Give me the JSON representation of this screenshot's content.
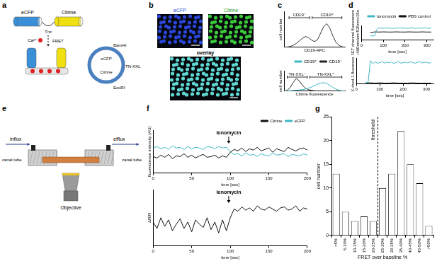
{
  "diagram_a": {
    "label": "a",
    "protein": {
      "donor": "eCFP",
      "linker": "Tnc",
      "acceptor": "Citrine"
    },
    "ion": "Ca²⁺",
    "transfer": "FRET",
    "plasmid": {
      "sites": [
        "BamHI",
        "EcoRI"
      ],
      "segments": [
        "eCFP",
        "TN-XXL",
        "Citrine"
      ]
    }
  },
  "images_b": {
    "label": "b",
    "tiles": [
      "eCFP",
      "Citrine",
      "overlay"
    ]
  },
  "diagram_e": {
    "label": "e",
    "flow": [
      "influx",
      "efflux"
    ],
    "tubes": [
      "canal tube",
      "canal tube"
    ],
    "objective": "Objective"
  },
  "chart_data": [
    {
      "panel": "c",
      "type": "line",
      "x_label": "CD19-APC",
      "y_label": "cell number",
      "x": [
        0,
        5,
        10,
        15,
        20,
        25,
        30,
        35,
        40,
        45,
        50,
        55,
        60,
        65,
        70,
        75,
        80,
        85,
        90,
        95,
        100
      ],
      "xlim": [
        0,
        100
      ],
      "ylim": [
        0,
        140
      ],
      "tick_labels": false,
      "grid": false,
      "series": [
        {
          "color": "#333333",
          "values": [
            0,
            1,
            3,
            8,
            15,
            25,
            35,
            42,
            38,
            28,
            22,
            30,
            55,
            80,
            92,
            75,
            45,
            20,
            8,
            2,
            0
          ]
        }
      ],
      "gates": [
        {
          "label": "CD19⁻",
          "from": 8,
          "to": 42
        },
        {
          "label": "CD19⁺",
          "from": 46,
          "to": 95
        }
      ]
    },
    {
      "type": "line",
      "x_label": "Citrine fluorescence",
      "y_label": "cell number",
      "x": [
        0,
        5,
        10,
        15,
        20,
        25,
        30,
        35,
        40,
        45,
        50,
        55,
        60,
        65,
        70,
        75,
        80,
        85,
        90,
        95,
        100
      ],
      "xlim": [
        0,
        100
      ],
      "ylim": [
        0,
        140
      ],
      "tick_labels": false,
      "grid": false,
      "legend": "upper right",
      "series": [
        {
          "name": "CD19⁺",
          "color": "#3fb8c4",
          "values": [
            0,
            1,
            2,
            4,
            6,
            8,
            10,
            14,
            20,
            28,
            38,
            48,
            55,
            58,
            52,
            40,
            26,
            14,
            6,
            2,
            0
          ]
        },
        {
          "name": "CD19⁻",
          "color": "#222222",
          "values": [
            0,
            5,
            25,
            60,
            88,
            70,
            40,
            20,
            10,
            5,
            2,
            1,
            0,
            0,
            0,
            0,
            0,
            0,
            0,
            0,
            0
          ]
        }
      ],
      "gates": [
        {
          "label": "TN-XXL⁻",
          "from": 5,
          "to": 38
        },
        {
          "label": "TN-XXL⁺",
          "from": 42,
          "to": 95
        }
      ]
    },
    {
      "panel": "d",
      "type": "line",
      "x_label": "time [sec]",
      "y_label": [
        "FRET channel fluorescence",
        "ex:490nm/em:535nm±15nm"
      ],
      "xlim": [
        0,
        330
      ],
      "xticks": [
        0,
        100,
        200,
        300
      ],
      "ylim": [
        0,
        100
      ],
      "tick_labels": "x",
      "grid": false,
      "legend": "upper right",
      "series": [
        {
          "name": "Ionomycin",
          "color": "#3fb8c4",
          "x": [
            40,
            50,
            60,
            70,
            80,
            90,
            100,
            110,
            120,
            130,
            140,
            150,
            160,
            170,
            180,
            190,
            200,
            210,
            220,
            230,
            240,
            250,
            260,
            270,
            280,
            290,
            300,
            310,
            320
          ],
          "values": [
            30,
            28,
            29,
            72,
            85,
            82,
            80,
            84,
            81,
            83,
            79,
            82,
            80,
            84,
            82,
            81,
            83,
            80,
            82,
            84,
            81,
            80,
            83,
            82,
            81,
            84,
            82,
            80,
            83
          ]
        },
        {
          "name": "PBS control",
          "color": "#111111",
          "x": [
            40,
            60,
            80,
            100,
            120,
            140,
            160,
            180,
            200,
            220,
            240,
            260,
            280,
            300,
            320
          ],
          "values": [
            50,
            56,
            55,
            56,
            55,
            55,
            56,
            55,
            55,
            56,
            55,
            55,
            56,
            55,
            55
          ]
        }
      ]
    },
    {
      "type": "line",
      "x_label": "time [sec]",
      "y_label": "X-rhod-1 fluorescence",
      "xlim": [
        0,
        330
      ],
      "xticks": [
        0,
        100,
        200,
        300
      ],
      "ylim": [
        0,
        100
      ],
      "tick_labels": "x",
      "grid": false,
      "series": [
        {
          "color": "#3fb8c4",
          "x": [
            40,
            50,
            60,
            70,
            80,
            90,
            100,
            110,
            120,
            130,
            140,
            150,
            160,
            170,
            180,
            190,
            200,
            210,
            220,
            230,
            240,
            250,
            260,
            270,
            280,
            290,
            300,
            310,
            320
          ],
          "values": [
            6,
            5,
            90,
            78,
            85,
            80,
            82,
            86,
            80,
            84,
            81,
            85,
            79,
            83,
            86,
            80,
            82,
            84,
            81,
            85,
            83,
            80,
            82,
            86,
            81,
            83,
            84,
            80,
            82
          ]
        },
        {
          "color": "#111111",
          "x": [
            40,
            60,
            80,
            100,
            120,
            140,
            160,
            180,
            200,
            220,
            240,
            260,
            280,
            300,
            320
          ],
          "values": [
            4,
            4,
            3,
            4,
            3,
            3,
            4,
            3,
            3,
            3,
            4,
            3,
            3,
            3,
            3
          ]
        }
      ]
    },
    {
      "panel": "f",
      "type": "line",
      "x_label": "time [sec]",
      "y_label": "fluorescence intensity (AU)",
      "x": [
        0,
        5,
        10,
        15,
        20,
        25,
        30,
        35,
        40,
        45,
        50,
        55,
        60,
        65,
        70,
        75,
        80,
        85,
        90,
        95,
        100,
        105,
        110,
        115,
        120,
        125,
        130,
        135,
        140,
        145,
        150,
        155,
        160,
        165,
        170,
        175,
        180,
        185,
        190,
        195,
        200
      ],
      "xlim": [
        0,
        200
      ],
      "xticks": [
        0,
        50,
        100,
        150,
        200
      ],
      "ylim": [
        0,
        6000
      ],
      "tick_labels": "x",
      "grid": false,
      "legend": "upper right",
      "series": [
        {
          "name": "Citrine",
          "color": "#111111",
          "values": [
            2300,
            2100,
            2500,
            2200,
            2600,
            2000,
            2400,
            2300,
            2700,
            2200,
            2500,
            2100,
            2400,
            2600,
            2200,
            2300,
            2500,
            2100,
            2400,
            2200,
            2900,
            3300,
            3100,
            3500,
            3000,
            3400,
            3200,
            3600,
            3100,
            3300,
            3500,
            2900,
            3400,
            3200,
            3000,
            3600,
            3300,
            3100,
            3400,
            3500,
            3200
          ]
        },
        {
          "name": "eCFP",
          "color": "#3fb8c4",
          "values": [
            3500,
            3700,
            3400,
            3600,
            3300,
            3800,
            3500,
            3600,
            3300,
            3700,
            3400,
            3600,
            3500,
            3300,
            3700,
            3600,
            3400,
            3700,
            3500,
            3600,
            3000,
            2600,
            2700,
            2400,
            2800,
            2500,
            2600,
            2300,
            2700,
            2500,
            2400,
            2800,
            2500,
            2600,
            2700,
            2300,
            2600,
            2500,
            2400,
            2700,
            2500
          ]
        }
      ],
      "arrows": [
        {
          "text": "Ionomycin",
          "x": 98
        }
      ]
    },
    {
      "type": "line",
      "x_label": "time [sec]",
      "y_label": "ΔR/R",
      "x": [
        0,
        5,
        10,
        15,
        20,
        25,
        30,
        35,
        40,
        45,
        50,
        55,
        60,
        65,
        70,
        75,
        80,
        85,
        90,
        95,
        100,
        105,
        110,
        115,
        120,
        125,
        130,
        135,
        140,
        145,
        150,
        155,
        160,
        165,
        170,
        175,
        180,
        185,
        190,
        195,
        200
      ],
      "xlim": [
        0,
        200
      ],
      "xticks": [
        0,
        50,
        100,
        150,
        200
      ],
      "ylim": [
        -1,
        1.6
      ],
      "tick_labels": "x",
      "grid": false,
      "series": [
        {
          "color": "#111111",
          "values": [
            0.1,
            -0.2,
            0.3,
            -0.1,
            0.2,
            -0.3,
            0,
            0.25,
            -0.2,
            0.1,
            -0.35,
            0.2,
            0,
            -0.15,
            0.3,
            -0.25,
            0.1,
            -0.4,
            0.2,
            -0.3,
            0.3,
            0.7,
            0.6,
            0.8,
            0.65,
            0.75,
            0.6,
            0.85,
            0.7,
            0.65,
            0.8,
            0.7,
            0.6,
            0.75,
            0.8,
            0.65,
            0.7,
            0.85,
            0.6,
            0.75,
            0.7
          ]
        }
      ],
      "arrows": [
        {
          "text": "Ionomycin",
          "x": 98
        }
      ]
    },
    {
      "panel": "g",
      "type": "bar",
      "x_label": "FRET over baseline %",
      "y_label": "cell number",
      "categories": [
        "<5%",
        "5-10%",
        "10-15%",
        "15-20%",
        "20-25%",
        "25-30%",
        "30-35%",
        "35-40%",
        "40-45%",
        "45-50%",
        ">50%"
      ],
      "values": [
        13,
        5,
        3,
        4,
        3,
        10,
        13,
        22,
        15,
        11,
        2
      ],
      "color": "#ffffff",
      "ylim": [
        0,
        25
      ],
      "yticks": [
        0,
        5,
        10,
        15,
        20,
        25
      ],
      "grid": false,
      "threshold": {
        "text": "threshold",
        "between": [
          "20-25%",
          "25-30%"
        ]
      }
    }
  ]
}
